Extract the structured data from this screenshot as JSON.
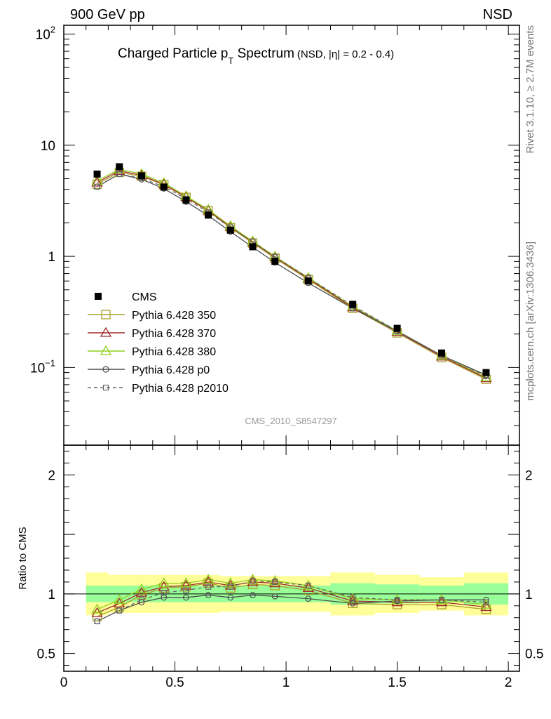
{
  "header": {
    "left": "900 GeV pp",
    "right": "NSD"
  },
  "side_labels": {
    "rivet": "Rivet 3.1.10, ≥ 2.7M events",
    "mcplots": "mcplots.cern.ch [arXiv:1306.3436]"
  },
  "watermark": "CMS_2010_S8547297",
  "chart_data": {
    "type": "line",
    "title": "Charged Particle p",
    "title_sub": "T",
    "title_tail": " Spectrum",
    "title_note": "(NSD, |η| = 0.2 - 0.4)",
    "xlim": [
      0,
      2.05
    ],
    "x_ticks": [
      {
        "v": 0,
        "label": "0"
      },
      {
        "v": 0.5,
        "label": "0.5"
      },
      {
        "v": 1,
        "label": "1"
      },
      {
        "v": 1.5,
        "label": "1.5"
      },
      {
        "v": 2,
        "label": "2"
      }
    ],
    "main": {
      "yscale": "log",
      "ylim": [
        0.02,
        120
      ],
      "y_ticks": [
        {
          "v": 100,
          "label": "10",
          "sup": "2"
        },
        {
          "v": 10,
          "label": "10",
          "sup": ""
        },
        {
          "v": 1,
          "label": "1",
          "sup": ""
        },
        {
          "v": 0.1,
          "label": "10",
          "sup": "−1"
        }
      ]
    },
    "ratio": {
      "ylabel": "Ratio to CMS",
      "ylim": [
        0.35,
        2.25
      ],
      "y_ticks": [
        {
          "v": 0.5,
          "label": "0.5"
        },
        {
          "v": 1,
          "label": "1"
        },
        {
          "v": 2,
          "label": "2"
        }
      ],
      "bands": [
        {
          "x0": 0.1,
          "x1": 0.2,
          "in": [
            0.93,
            1.07
          ],
          "out": [
            0.82,
            1.18
          ]
        },
        {
          "x0": 0.2,
          "x1": 0.3,
          "in": [
            0.93,
            1.07
          ],
          "out": [
            0.84,
            1.16
          ]
        },
        {
          "x0": 0.3,
          "x1": 0.4,
          "in": [
            0.93,
            1.07
          ],
          "out": [
            0.84,
            1.16
          ]
        },
        {
          "x0": 0.4,
          "x1": 0.5,
          "in": [
            0.93,
            1.07
          ],
          "out": [
            0.84,
            1.16
          ]
        },
        {
          "x0": 0.5,
          "x1": 0.6,
          "in": [
            0.93,
            1.07
          ],
          "out": [
            0.84,
            1.16
          ]
        },
        {
          "x0": 0.6,
          "x1": 0.7,
          "in": [
            0.93,
            1.07
          ],
          "out": [
            0.84,
            1.16
          ]
        },
        {
          "x0": 0.7,
          "x1": 0.8,
          "in": [
            0.93,
            1.07
          ],
          "out": [
            0.85,
            1.15
          ]
        },
        {
          "x0": 0.8,
          "x1": 0.9,
          "in": [
            0.93,
            1.07
          ],
          "out": [
            0.85,
            1.15
          ]
        },
        {
          "x0": 0.9,
          "x1": 1.0,
          "in": [
            0.93,
            1.07
          ],
          "out": [
            0.85,
            1.15
          ]
        },
        {
          "x0": 1.0,
          "x1": 1.2,
          "in": [
            0.93,
            1.07
          ],
          "out": [
            0.85,
            1.15
          ]
        },
        {
          "x0": 1.2,
          "x1": 1.4,
          "in": [
            0.91,
            1.09
          ],
          "out": [
            0.82,
            1.18
          ]
        },
        {
          "x0": 1.4,
          "x1": 1.6,
          "in": [
            0.92,
            1.08
          ],
          "out": [
            0.84,
            1.16
          ]
        },
        {
          "x0": 1.6,
          "x1": 1.8,
          "in": [
            0.93,
            1.07
          ],
          "out": [
            0.86,
            1.14
          ]
        },
        {
          "x0": 1.8,
          "x1": 2.0,
          "in": [
            0.91,
            1.09
          ],
          "out": [
            0.82,
            1.18
          ]
        }
      ]
    },
    "x": [
      0.15,
      0.25,
      0.35,
      0.45,
      0.55,
      0.65,
      0.75,
      0.85,
      0.95,
      1.1,
      1.3,
      1.5,
      1.7,
      1.9
    ],
    "cms": [
      5.5,
      6.4,
      5.3,
      4.2,
      3.2,
      2.35,
      1.72,
      1.22,
      0.9,
      0.6,
      0.37,
      0.225,
      0.135,
      0.09
    ],
    "series": [
      {
        "name": "Pythia 6.428 350",
        "color": "#aaa02c",
        "marker": "square-open",
        "dash": false,
        "ratio": [
          0.81,
          0.89,
          0.99,
          1.05,
          1.06,
          1.09,
          1.05,
          1.08,
          1.07,
          1.03,
          0.92,
          0.91,
          0.91,
          0.87
        ]
      },
      {
        "name": "Pythia 6.428 370",
        "color": "#a02c2c",
        "marker": "triangle-open",
        "dash": false,
        "ratio": [
          0.84,
          0.92,
          1.01,
          1.06,
          1.07,
          1.1,
          1.07,
          1.1,
          1.09,
          1.05,
          0.94,
          0.93,
          0.93,
          0.89
        ]
      },
      {
        "name": "Pythia 6.428 380",
        "color": "#8fd11d",
        "marker": "triangle-open",
        "dash": false,
        "ratio": [
          0.87,
          0.95,
          1.04,
          1.09,
          1.09,
          1.12,
          1.09,
          1.12,
          1.11,
          1.07,
          0.96,
          0.95,
          0.95,
          0.91
        ]
      },
      {
        "name": "Pythia 6.428 p0",
        "color": "#4d4d4d",
        "marker": "circle-open",
        "dash": false,
        "ratio": [
          0.77,
          0.86,
          0.93,
          0.97,
          0.97,
          0.99,
          0.97,
          0.99,
          0.98,
          0.96,
          0.92,
          0.94,
          0.95,
          0.95
        ]
      },
      {
        "name": "Pythia 6.428 p2010",
        "color": "#666666",
        "marker": "square-open",
        "dash": true,
        "ratio": [
          0.77,
          0.86,
          0.95,
          1.01,
          1.03,
          1.06,
          1.06,
          1.11,
          1.1,
          1.07,
          0.97,
          0.95,
          0.95,
          0.93
        ]
      }
    ],
    "legend_data_label": "CMS",
    "legend_placement": "lower-left"
  }
}
